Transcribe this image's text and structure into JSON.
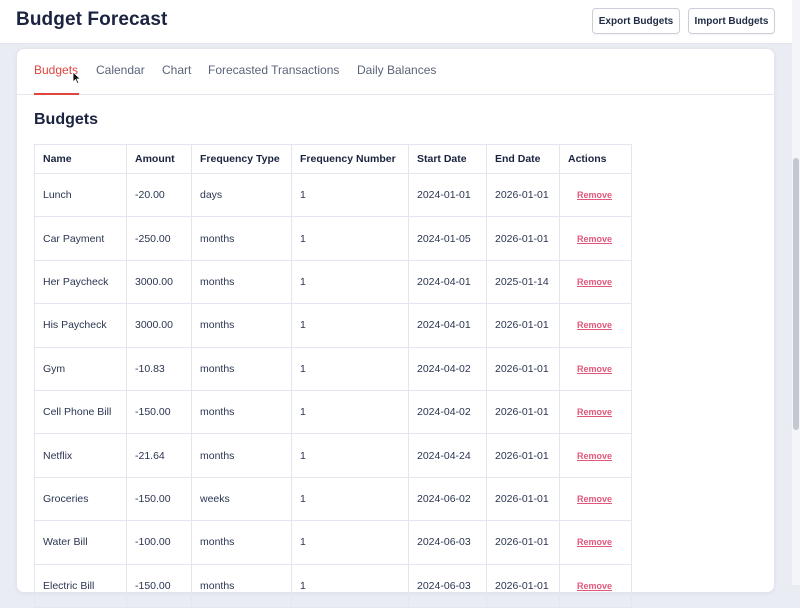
{
  "header": {
    "title": "Budget Forecast",
    "export_label": "Export Budgets",
    "import_label": "Import Budgets"
  },
  "tabs": [
    {
      "label": "Budgets",
      "active": true
    },
    {
      "label": "Calendar",
      "active": false
    },
    {
      "label": "Chart",
      "active": false
    },
    {
      "label": "Forecasted Transactions",
      "active": false
    },
    {
      "label": "Daily Balances",
      "active": false
    }
  ],
  "section": {
    "title": "Budgets"
  },
  "table": {
    "columns": [
      "Name",
      "Amount",
      "Frequency Type",
      "Frequency Number",
      "Start Date",
      "End Date",
      "Actions"
    ],
    "action_label": "Remove",
    "rows": [
      [
        "Lunch",
        "-20.00",
        "days",
        "1",
        "2024-01-01",
        "2026-01-01"
      ],
      [
        "Car Payment",
        "-250.00",
        "months",
        "1",
        "2024-01-05",
        "2026-01-01"
      ],
      [
        "Her Paycheck",
        "3000.00",
        "months",
        "1",
        "2024-04-01",
        "2025-01-14"
      ],
      [
        "His Paycheck",
        "3000.00",
        "months",
        "1",
        "2024-04-01",
        "2026-01-01"
      ],
      [
        "Gym",
        "-10.83",
        "months",
        "1",
        "2024-04-02",
        "2026-01-01"
      ],
      [
        "Cell Phone Bill",
        "-150.00",
        "months",
        "1",
        "2024-04-02",
        "2026-01-01"
      ],
      [
        "Netflix",
        "-21.64",
        "months",
        "1",
        "2024-04-24",
        "2026-01-01"
      ],
      [
        "Groceries",
        "-150.00",
        "weeks",
        "1",
        "2024-06-02",
        "2026-01-01"
      ],
      [
        "Water Bill",
        "-100.00",
        "months",
        "1",
        "2024-06-03",
        "2026-01-01"
      ],
      [
        "Electric Bill",
        "-150.00",
        "months",
        "1",
        "2024-06-03",
        "2026-01-01"
      ]
    ]
  },
  "colors": {
    "accent": "#e0453c",
    "remove_link": "#e0587a",
    "text": "#1a2340"
  }
}
